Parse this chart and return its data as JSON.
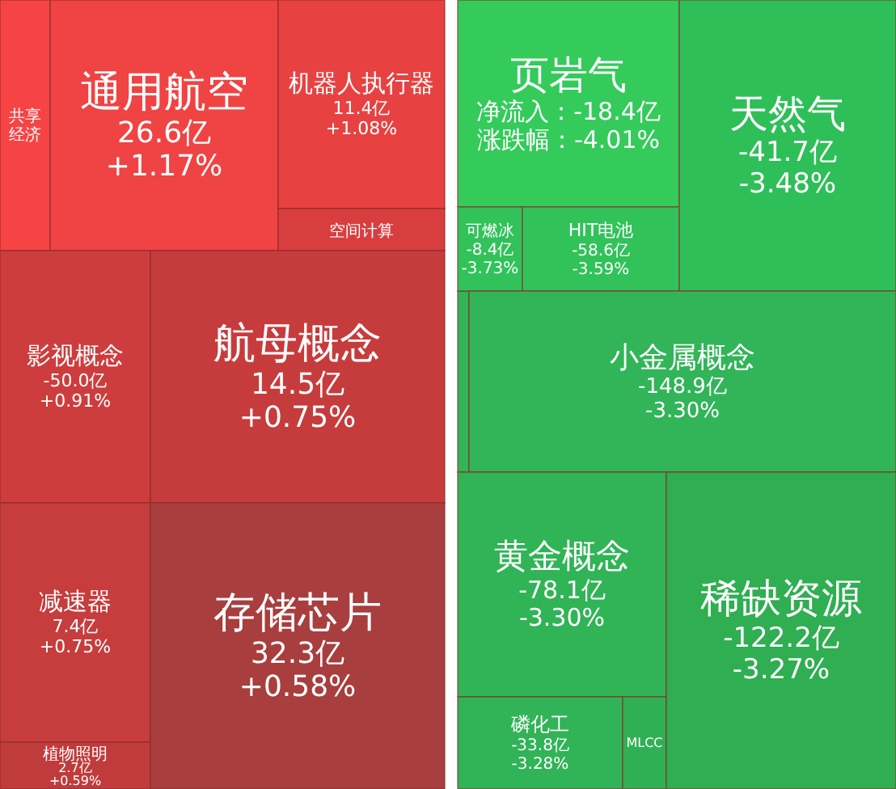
{
  "chart_data": {
    "type": "other",
    "categories": [
      "共享经济",
      "通用航空",
      "机器人执行器",
      "空间计算",
      "影视概念",
      "航母概念",
      "减速器",
      "植物照明",
      "存储芯片",
      "页岩气",
      "可燃冰",
      "HIT电池",
      "天然气",
      "小金属概念",
      "黄金概念",
      "磷化工",
      "MLCC",
      "稀缺资源"
    ],
    "series": [
      {
        "colors": [
          "#f64444",
          "#f04343",
          "#e84141",
          "#d93e3e",
          "#cd3d3d",
          "#c63c3c",
          "#c73c3c",
          "#c03b3b",
          "#a83e3e",
          "#34cb5b",
          "#31c25a",
          "#31c25a",
          "#2fbf58",
          "#31b558",
          "#30b456",
          "#31b357",
          "#30b054",
          "#2fae52"
        ],
        "values": [
          null,
          26.6,
          11.4,
          null,
          -50.0,
          14.5,
          7.4,
          2.7,
          32.3,
          -18.4,
          -8.4,
          -58.6,
          -41.7,
          -148.9,
          -78.1,
          -33.8,
          null,
          -122.2
        ],
        "value_labels": [
          null,
          "26.6亿",
          "11.4亿",
          null,
          "-50.0亿",
          "14.5亿",
          "7.4亿",
          "2.7亿",
          "32.3亿",
          "净流入：-18.4亿",
          "-8.4亿",
          "-58.6亿",
          "-41.7亿",
          "-148.9亿",
          "-78.1亿",
          "-33.8亿",
          null,
          "-122.2亿"
        ]
      },
      {
        "values": [
          null,
          1.17,
          1.08,
          null,
          0.91,
          0.75,
          0.75,
          0.59,
          0.58,
          -4.01,
          -3.73,
          -3.59,
          -3.48,
          -3.3,
          -3.3,
          -3.28,
          null,
          -3.27
        ],
        "value_labels": [
          null,
          "+1.17%",
          "+1.08%",
          null,
          "+0.91%",
          "+0.75%",
          "+0.75%",
          "+0.59%",
          "+0.58%",
          "涨跌幅：-4.01%",
          "-3.73%",
          "-3.59%",
          "-3.48%",
          "-3.30%",
          "-3.30%",
          "-3.28%",
          null,
          "-3.27%"
        ]
      }
    ]
  }
}
